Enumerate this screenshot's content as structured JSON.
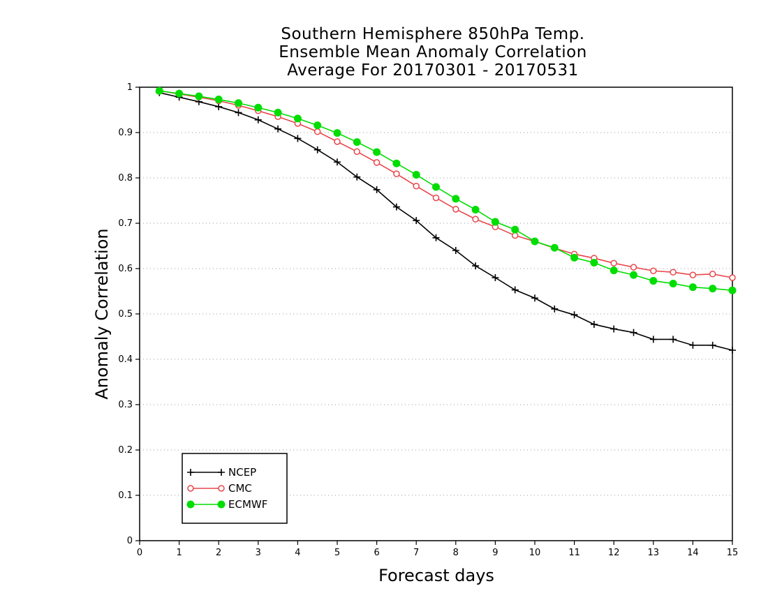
{
  "chart_data": {
    "type": "line",
    "title_lines": [
      "Southern Hemisphere 850hPa Temp.",
      "Ensemble Mean Anomaly Correlation",
      "Average For 20170301 - 20170531"
    ],
    "xlabel": "Forecast days",
    "ylabel": "Anomaly Correlation",
    "xlim": [
      0,
      15
    ],
    "ylim": [
      0,
      1
    ],
    "x_ticks": [
      "0",
      "1",
      "2",
      "3",
      "4",
      "5",
      "6",
      "7",
      "8",
      "9",
      "10",
      "11",
      "12",
      "13",
      "14",
      "15"
    ],
    "y_ticks": [
      "0",
      "0.1",
      "0.2",
      "0.3",
      "0.4",
      "0.5",
      "0.6",
      "0.7",
      "0.8",
      "0.9",
      "1"
    ],
    "grid": "horizontal dotted",
    "legend_position": "bottom-left",
    "x": [
      0.5,
      1,
      1.5,
      2,
      2.5,
      3,
      3.5,
      4,
      4.5,
      5,
      5.5,
      6,
      6.5,
      7,
      7.5,
      8,
      8.5,
      9,
      9.5,
      10,
      10.5,
      11,
      11.5,
      12,
      12.5,
      13,
      13.5,
      14,
      14.5,
      15
    ],
    "series": [
      {
        "name": "NCEP",
        "color": "#000000",
        "marker": "plus",
        "values": [
          0.988,
          0.978,
          0.968,
          0.957,
          0.944,
          0.928,
          0.908,
          0.887,
          0.862,
          0.835,
          0.802,
          0.774,
          0.736,
          0.706,
          0.668,
          0.64,
          0.606,
          0.58,
          0.553,
          0.535,
          0.511,
          0.498,
          0.477,
          0.467,
          0.459,
          0.444,
          0.444,
          0.431,
          0.431,
          0.42
        ]
      },
      {
        "name": "CMC",
        "color": "#e8464b",
        "marker": "open-circle",
        "values": [
          0.992,
          0.985,
          0.978,
          0.97,
          0.96,
          0.948,
          0.935,
          0.92,
          0.902,
          0.88,
          0.858,
          0.834,
          0.809,
          0.782,
          0.756,
          0.731,
          0.709,
          0.692,
          0.673,
          0.66,
          0.645,
          0.632,
          0.623,
          0.612,
          0.603,
          0.595,
          0.592,
          0.586,
          0.588,
          0.58
        ]
      },
      {
        "name": "ECMWF",
        "color": "#00dd00",
        "marker": "filled-circle",
        "values": [
          0.992,
          0.986,
          0.98,
          0.973,
          0.965,
          0.955,
          0.944,
          0.931,
          0.916,
          0.899,
          0.879,
          0.857,
          0.832,
          0.807,
          0.78,
          0.754,
          0.73,
          0.703,
          0.686,
          0.66,
          0.646,
          0.624,
          0.613,
          0.596,
          0.586,
          0.573,
          0.567,
          0.559,
          0.556,
          0.552
        ]
      }
    ]
  }
}
